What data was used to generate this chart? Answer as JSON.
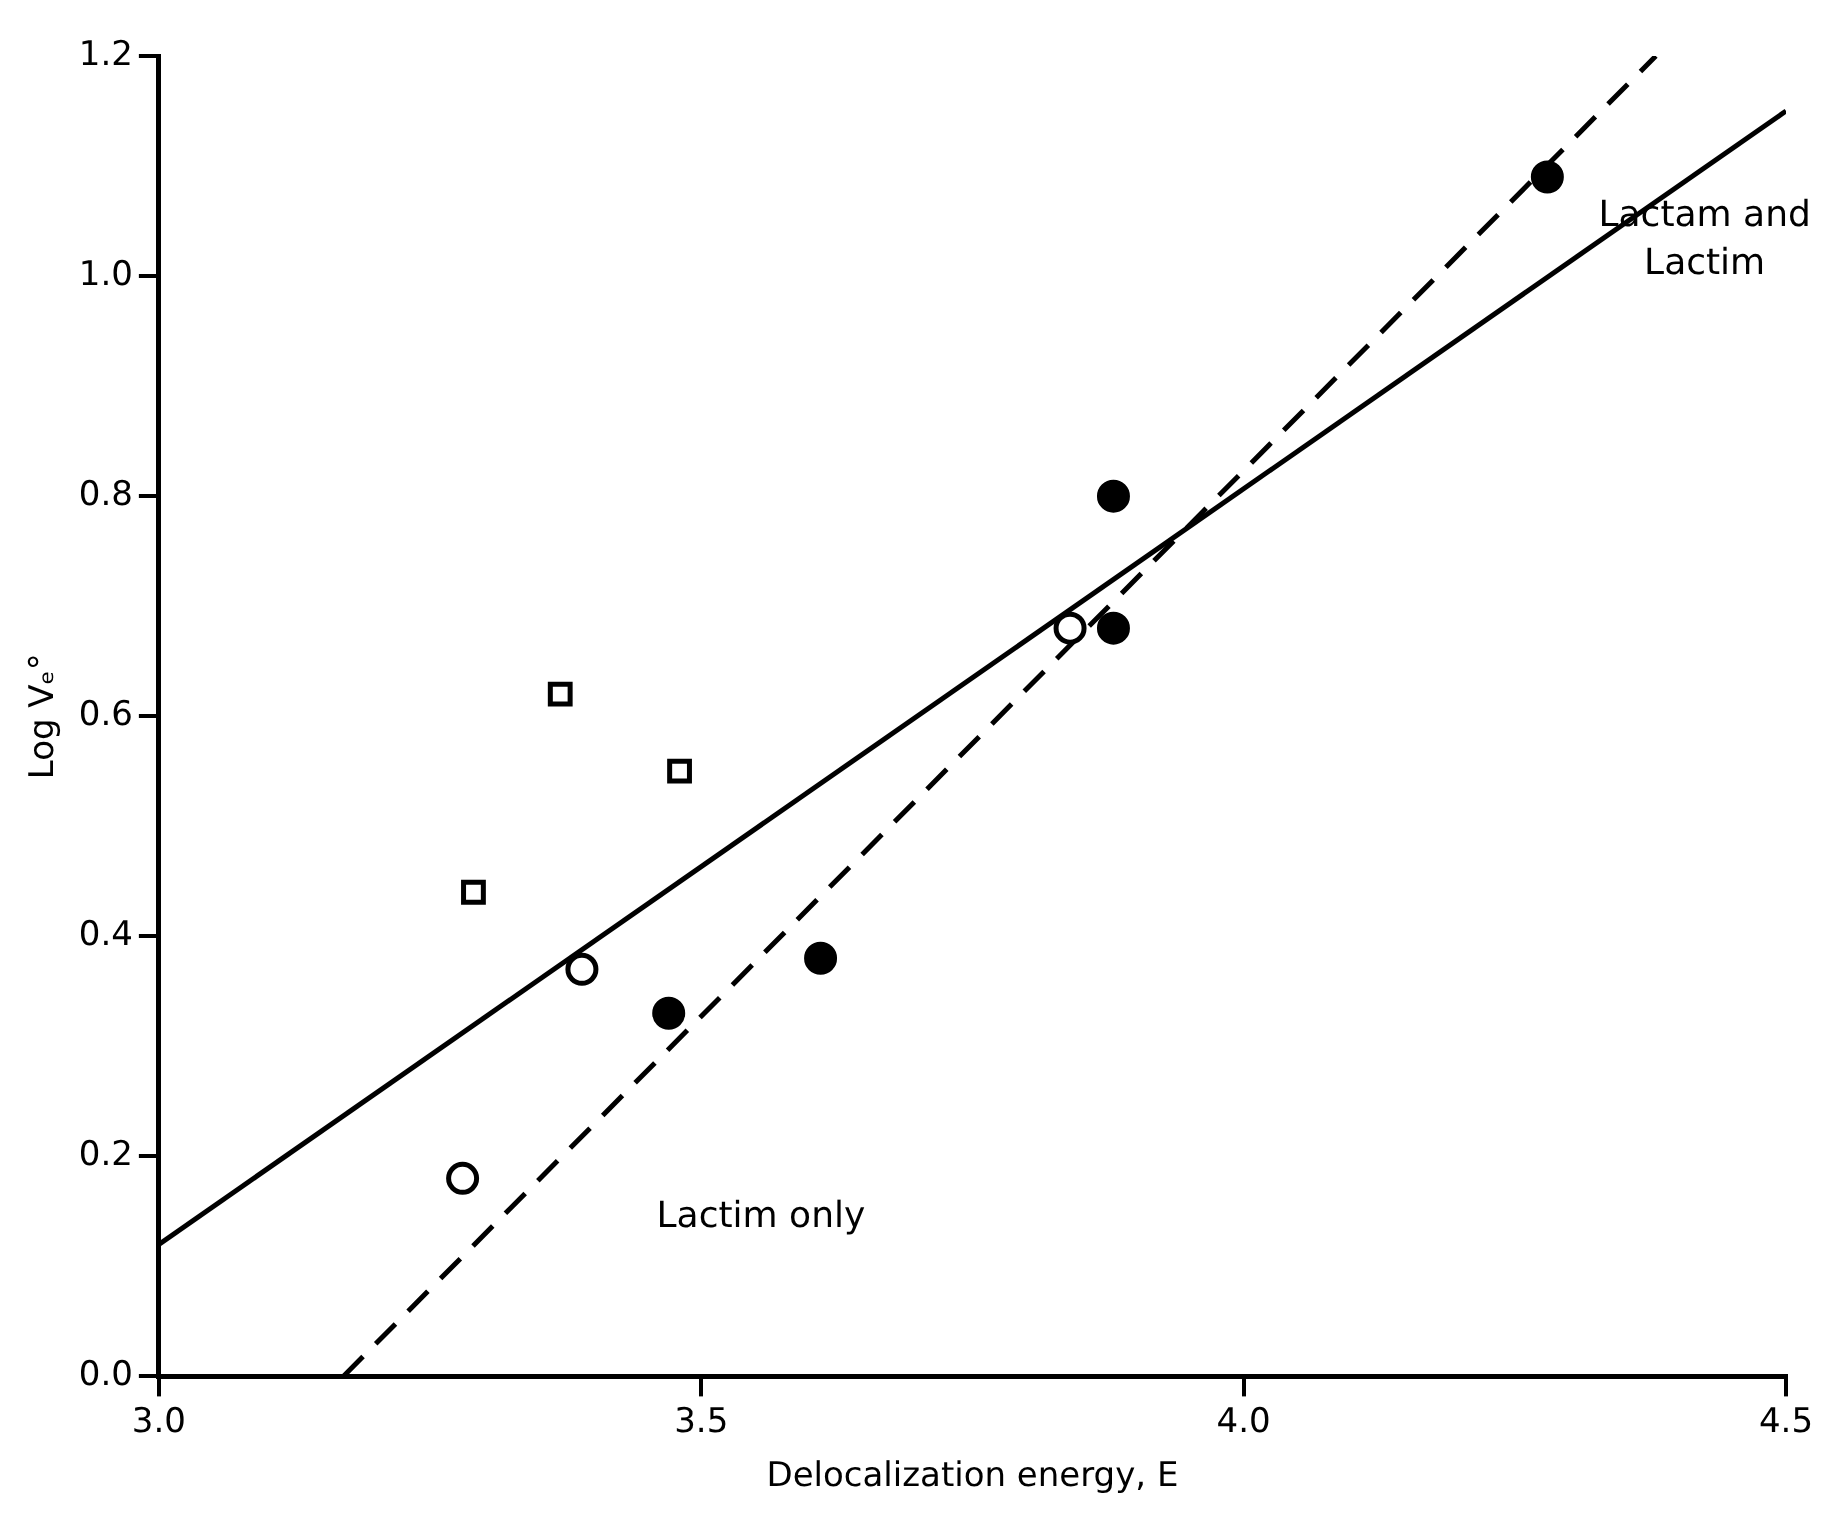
{
  "chart_data": {
    "type": "scatter",
    "xlabel": "Delocalization energy, E",
    "ylabel": "Log Vₑ°",
    "xlim": [
      3.0,
      4.5
    ],
    "xticks": [
      {
        "value": 3.0,
        "label": "3.0"
      },
      {
        "value": 3.5,
        "label": "3.5"
      },
      {
        "value": 4.0,
        "label": "4.0"
      },
      {
        "value": 4.5,
        "label": "4.5"
      }
    ],
    "ylim": [
      0,
      1.2
    ],
    "yticks": [
      {
        "value": 0,
        "label": "0.0"
      },
      {
        "value": 0.2,
        "label": "0.2"
      },
      {
        "value": 0.4,
        "label": "0.4"
      },
      {
        "value": 0.6,
        "label": "0.6"
      },
      {
        "value": 0.8,
        "label": "0.8"
      },
      {
        "value": 1.0,
        "label": "1.0"
      },
      {
        "value": 1.2,
        "label": "1.2"
      }
    ],
    "grid": false,
    "legend": false,
    "series": [
      {
        "marker": "square",
        "color": "#ffffff",
        "x": [
          3.29,
          3.37,
          3.48
        ],
        "values": [
          0.44,
          0.62,
          0.55
        ]
      },
      {
        "marker": "circle",
        "color": "#ffffff",
        "x": [
          3.28,
          3.39,
          3.84
        ],
        "values": [
          0.18,
          0.37,
          0.68
        ]
      },
      {
        "marker": "circle",
        "color": "#000000",
        "x": [
          3.47,
          3.61,
          3.88,
          3.88,
          4.28
        ],
        "values": [
          0.33,
          0.38,
          0.8,
          0.68,
          1.09
        ]
      },
      {
        "type": "line",
        "line_style": "solid",
        "color": "#000000",
        "x": [
          3.0,
          4.5
        ],
        "values": [
          0.12,
          1.15
        ]
      },
      {
        "type": "line",
        "line_style": "dashed",
        "color": "#000000",
        "x": [
          3.17,
          4.38
        ],
        "values": [
          0,
          1.2
        ]
      }
    ],
    "annotations": [
      "Lactim only",
      "Lactam and\nLactim"
    ]
  }
}
